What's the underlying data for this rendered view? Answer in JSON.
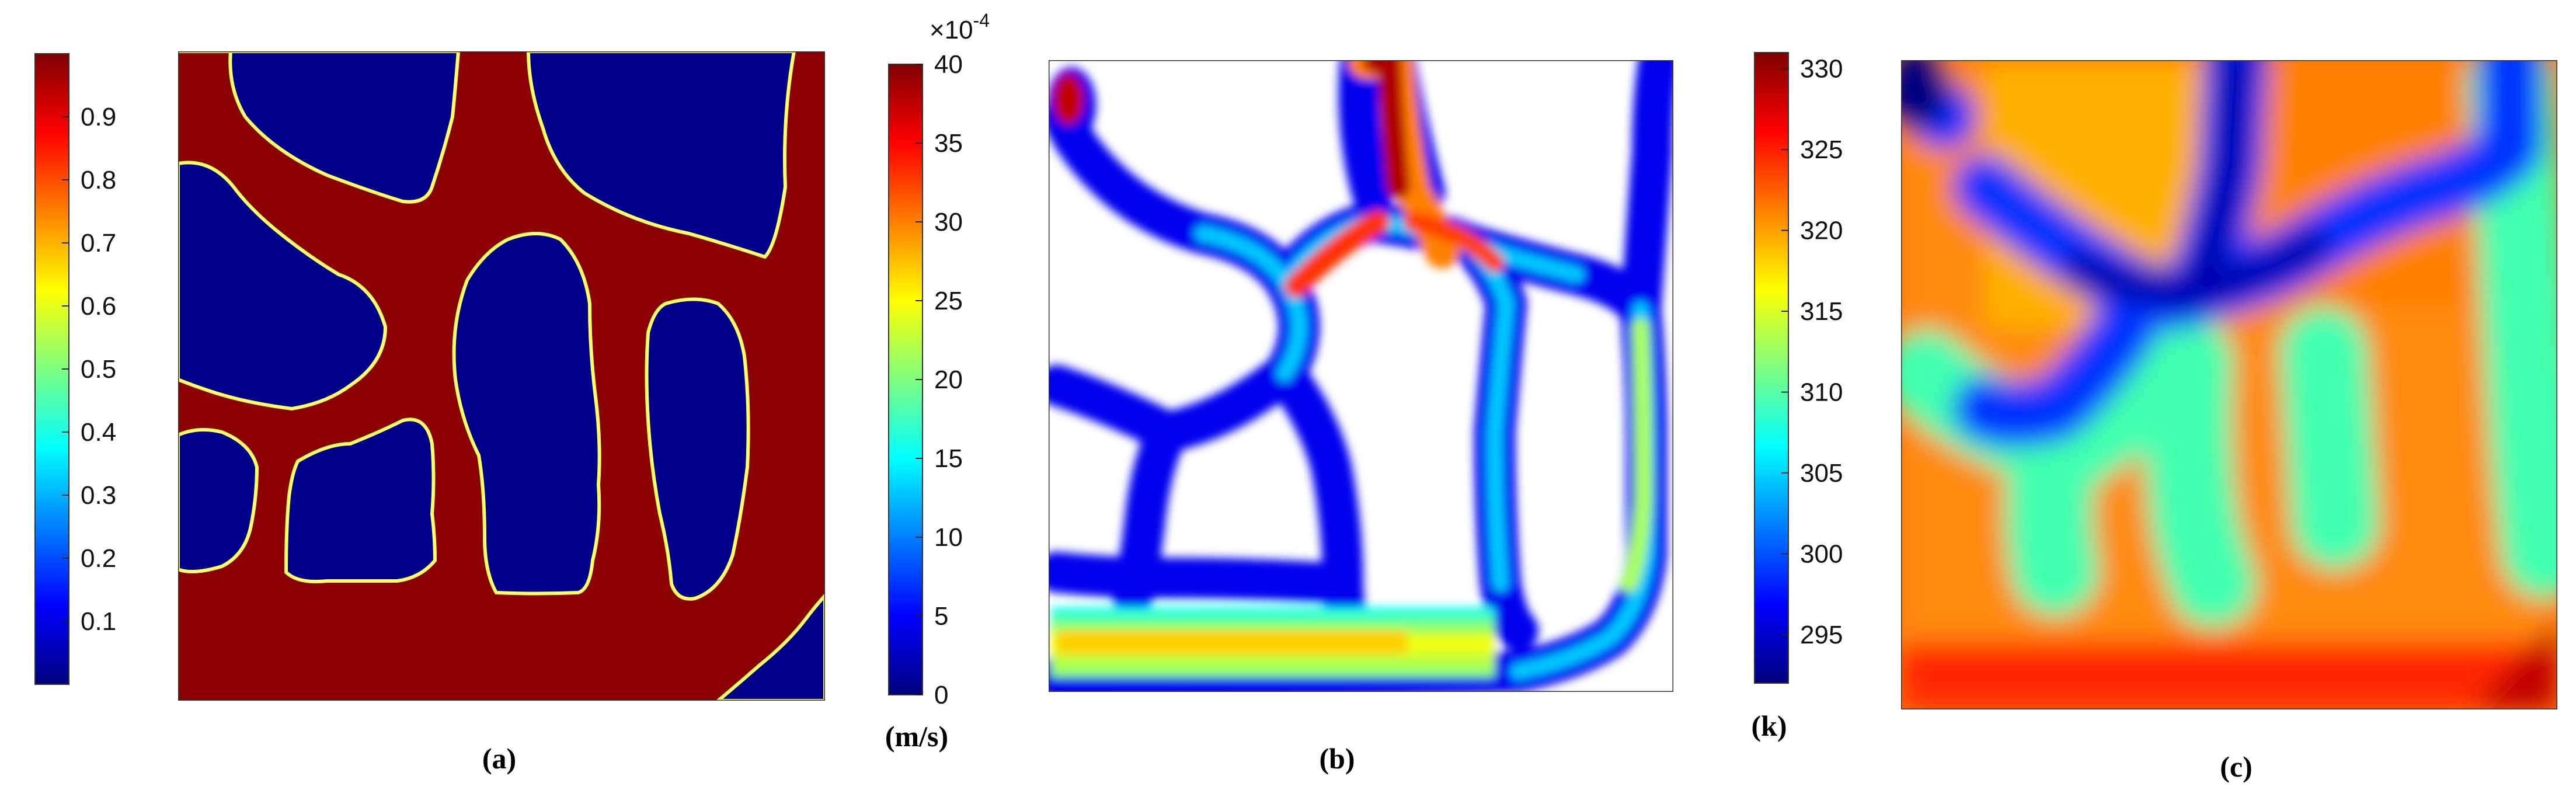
{
  "colors": {
    "jet": [
      "#00007f",
      "#0000ff",
      "#007fff",
      "#00ffff",
      "#7fff7f",
      "#ffff00",
      "#ff7f00",
      "#ff0000",
      "#7f0000"
    ],
    "solid": "#8b0000",
    "void": "#00008b",
    "frame": "#333333"
  },
  "chart_data": [
    {
      "type": "heatmap",
      "id": "a",
      "caption": "(a)",
      "unit": "",
      "colorbar": {
        "ticks": [
          "0.1",
          "0.2",
          "0.3",
          "0.4",
          "0.5",
          "0.6",
          "0.7",
          "0.8",
          "0.9"
        ],
        "range": [
          0,
          1
        ]
      },
      "grid": false
    },
    {
      "type": "heatmap",
      "id": "b",
      "caption": "(b)",
      "unit": "(m/s)",
      "colorbar": {
        "ticks": [
          "0",
          "5",
          "10",
          "15",
          "20",
          "25",
          "30",
          "35",
          "40"
        ],
        "range": [
          0,
          40
        ],
        "multiplier": "×10",
        "exponent": "-4"
      },
      "grid": false
    },
    {
      "type": "heatmap",
      "id": "c",
      "caption": "(c)",
      "unit": "(k)",
      "colorbar": {
        "ticks": [
          "295",
          "300",
          "305",
          "310",
          "315",
          "320",
          "325",
          "330"
        ],
        "range": [
          292,
          331
        ]
      },
      "grid": false
    }
  ]
}
